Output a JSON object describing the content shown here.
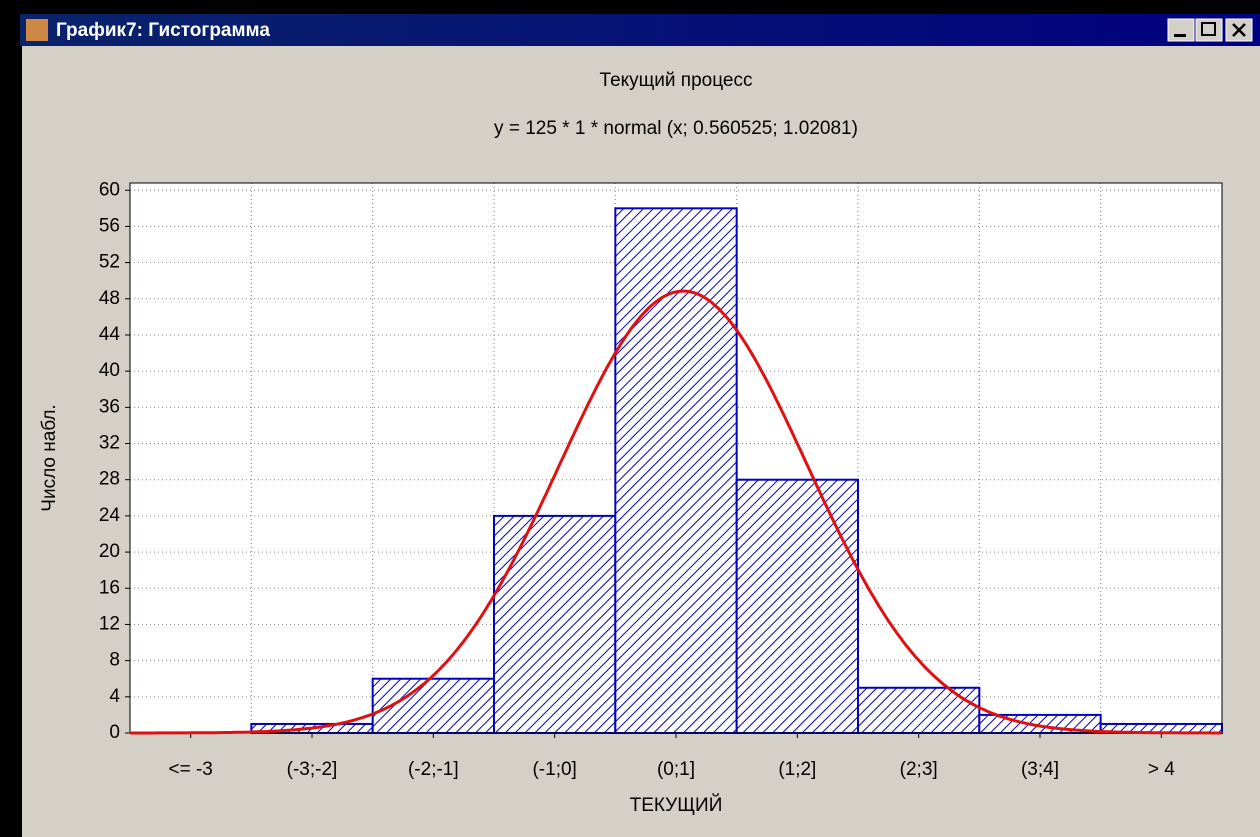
{
  "window": {
    "title": "График7: Гистограмма"
  },
  "chart_data": {
    "type": "histogram",
    "title": "Текущий процесс",
    "subtitle": "y = 125 * 1 * normal (x; 0.560525; 1.02081)",
    "x_label": "ТЕКУЩИЙ",
    "y_label": "Число набл.",
    "categories": [
      "<= -3",
      "(-3;-2]",
      "(-2;-1]",
      "(-1;0]",
      "(0;1]",
      "(1;2]",
      "(2;3]",
      "(3;4]",
      "> 4"
    ],
    "values": [
      0,
      1,
      6,
      24,
      58,
      28,
      5,
      2,
      1
    ],
    "color": "#0000c0",
    "xlim": [
      -4,
      5
    ],
    "ylim": [
      0,
      60.8
    ],
    "yticks": [
      0,
      4,
      8,
      12,
      16,
      20,
      24,
      28,
      32,
      36,
      40,
      44,
      48,
      52,
      56,
      60
    ],
    "grid": true,
    "curve": {
      "n": 125,
      "bin_width": 1,
      "mean": 0.560525,
      "sd": 1.02081,
      "color": "#e01010"
    }
  }
}
